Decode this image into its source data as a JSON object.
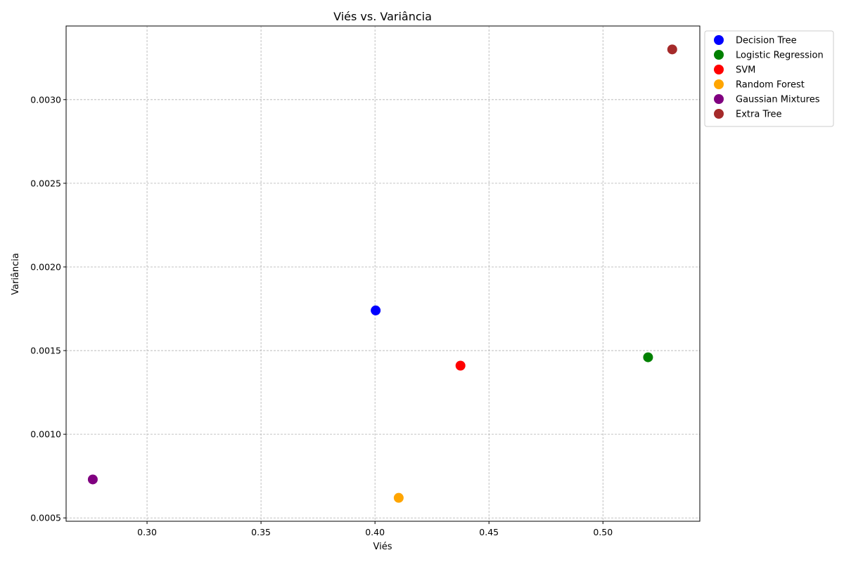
{
  "chart_data": {
    "type": "scatter",
    "title": "Viés vs. Variância",
    "xlabel": "Viés",
    "ylabel": "Variância",
    "xlim": [
      0.2645,
      0.5425
    ],
    "ylim": [
      0.00048,
      0.00344
    ],
    "xticks": [
      0.3,
      0.35,
      0.4,
      0.45,
      0.5
    ],
    "xtick_labels": [
      "0.30",
      "0.35",
      "0.40",
      "0.45",
      "0.50"
    ],
    "yticks": [
      0.0005,
      0.001,
      0.0015,
      0.002,
      0.0025,
      0.003
    ],
    "ytick_labels": [
      "0.0005",
      "0.0010",
      "0.0015",
      "0.0020",
      "0.0025",
      "0.0030"
    ],
    "grid": true,
    "legend_position": "outside-top-right",
    "series": [
      {
        "name": "Decision Tree",
        "color": "#0000ff",
        "x": [
          0.4003
        ],
        "y": [
          0.00174
        ]
      },
      {
        "name": "Logistic Regression",
        "color": "#008000",
        "x": [
          0.5198
        ],
        "y": [
          0.00146
        ]
      },
      {
        "name": "SVM",
        "color": "#ff0000",
        "x": [
          0.4375
        ],
        "y": [
          0.00141
        ]
      },
      {
        "name": "Random Forest",
        "color": "#ffa500",
        "x": [
          0.4104
        ],
        "y": [
          0.00062
        ]
      },
      {
        "name": "Gaussian Mixtures",
        "color": "#800080",
        "x": [
          0.2762
        ],
        "y": [
          0.00073
        ]
      },
      {
        "name": "Extra Tree",
        "color": "#a52a2a",
        "x": [
          0.5304
        ],
        "y": [
          0.0033
        ]
      }
    ]
  }
}
